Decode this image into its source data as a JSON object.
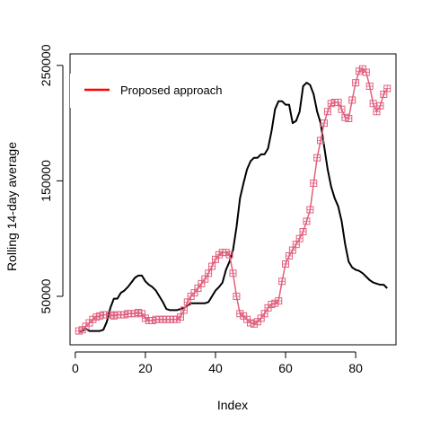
{
  "chart_data": {
    "type": "line",
    "xlabel": "Index",
    "ylabel": "Rolling 14-day average",
    "xlim": [
      -1.5,
      91.5
    ],
    "ylim": [
      8000,
      260000
    ],
    "x_ticks": [
      0,
      20,
      40,
      60,
      80
    ],
    "x_tick_labels": [
      "0",
      "20",
      "40",
      "60",
      "80"
    ],
    "y_ticks": [
      50000,
      150000,
      250000
    ],
    "y_tick_labels": [
      "50000",
      "150000",
      "250000"
    ],
    "legend": {
      "position": "top-left",
      "entries": [
        {
          "label": "Proposed approach",
          "color": "#ff0000"
        }
      ]
    },
    "series": [
      {
        "color": "#000000",
        "marker": "none",
        "x": [
          1,
          2,
          3,
          4,
          5,
          6,
          7,
          8,
          9,
          10,
          11,
          12,
          13,
          14,
          15,
          16,
          17,
          18,
          19,
          20,
          21,
          22,
          23,
          24,
          25,
          26,
          27,
          28,
          29,
          30,
          31,
          32,
          33,
          34,
          35,
          36,
          37,
          38,
          39,
          40,
          41,
          42,
          43,
          44,
          45,
          46,
          47,
          48,
          49,
          50,
          51,
          52,
          53,
          54,
          55,
          56,
          57,
          58,
          59,
          60,
          61,
          62,
          63,
          64,
          65,
          66,
          67,
          68,
          69,
          70,
          71,
          72,
          73,
          74,
          75,
          76,
          77,
          78,
          79,
          80,
          81,
          82,
          83,
          84,
          85,
          86,
          87,
          88,
          89
        ],
        "values": [
          20000,
          20000,
          22000,
          20000,
          20000,
          20000,
          20000,
          21000,
          28000,
          40000,
          48000,
          48000,
          53000,
          55000,
          58000,
          62000,
          66000,
          68000,
          68000,
          63000,
          60000,
          58000,
          55000,
          50000,
          45000,
          39000,
          38000,
          38000,
          38000,
          39000,
          40000,
          42000,
          44000,
          44000,
          44000,
          44000,
          44000,
          45000,
          50000,
          55000,
          58000,
          62000,
          73000,
          80000,
          90000,
          110000,
          135000,
          148000,
          160000,
          167000,
          170000,
          170000,
          173000,
          173000,
          178000,
          193000,
          212000,
          219000,
          219000,
          216000,
          216000,
          200000,
          202000,
          210000,
          232000,
          235000,
          233000,
          225000,
          210000,
          200000,
          180000,
          160000,
          145000,
          135000,
          128000,
          115000,
          95000,
          80000,
          75000,
          73000,
          72000,
          70000,
          67000,
          64000,
          62000,
          61000,
          60000,
          60000,
          57000
        ]
      },
      {
        "color": "#e0607e",
        "marker": "square",
        "x": [
          1,
          2,
          3,
          4,
          5,
          6,
          7,
          8,
          9,
          10,
          11,
          12,
          13,
          14,
          15,
          16,
          17,
          18,
          19,
          20,
          21,
          22,
          23,
          24,
          25,
          26,
          27,
          28,
          29,
          30,
          31,
          32,
          33,
          34,
          35,
          36,
          37,
          38,
          39,
          40,
          41,
          42,
          43,
          44,
          45,
          46,
          47,
          48,
          49,
          50,
          51,
          52,
          53,
          54,
          55,
          56,
          57,
          58,
          59,
          60,
          61,
          62,
          63,
          64,
          65,
          66,
          67,
          68,
          69,
          70,
          71,
          72,
          73,
          74,
          75,
          76,
          77,
          78,
          79,
          80,
          81,
          82,
          83,
          84,
          85,
          86,
          87,
          88,
          89
        ],
        "values": [
          20000,
          21000,
          24000,
          27000,
          30000,
          32000,
          33000,
          34000,
          34000,
          34000,
          33000,
          34000,
          34000,
          34000,
          35000,
          35000,
          35000,
          36000,
          35000,
          31000,
          29000,
          29000,
          30000,
          30000,
          30000,
          30000,
          30000,
          30000,
          30000,
          32000,
          38000,
          45000,
          50000,
          53000,
          57000,
          61000,
          65000,
          70000,
          76000,
          82000,
          86000,
          88000,
          88000,
          86000,
          70000,
          50000,
          35000,
          33000,
          30000,
          27000,
          26000,
          28000,
          31000,
          35000,
          40000,
          43000,
          44000,
          46000,
          63000,
          78000,
          85000,
          90000,
          95000,
          100000,
          106000,
          115000,
          125000,
          148000,
          170000,
          185000,
          200000,
          210000,
          217000,
          218000,
          218000,
          212000,
          205000,
          204000,
          220000,
          235000,
          245000,
          247000,
          244000,
          232000,
          217000,
          210000,
          215000,
          225000,
          230000
        ]
      }
    ]
  }
}
